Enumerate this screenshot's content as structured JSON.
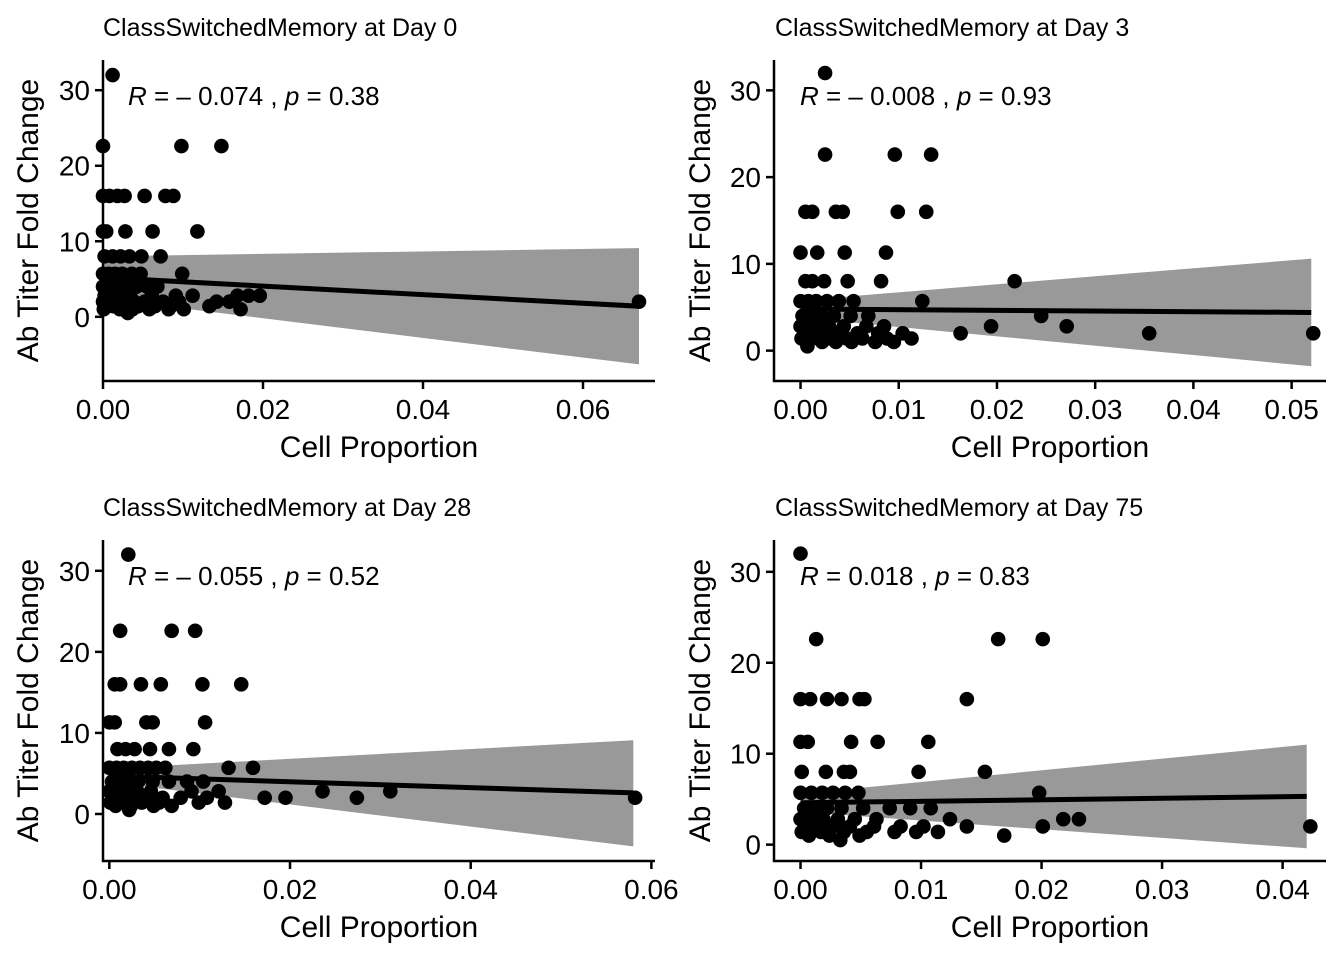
{
  "chart_data": [
    {
      "type": "scatter",
      "title": "ClassSwitchedMemory at Day 0",
      "xlabel": "Cell Proportion",
      "ylabel": "Ab Titer Fold Change",
      "stat": {
        "r_label": "R",
        "r_value": "= – 0.074",
        "sep": ",",
        "p_label": "p",
        "p_value": "= 0.38"
      },
      "xlim": [
        0,
        0.069
      ],
      "ylim": [
        -8.5,
        34
      ],
      "xticks": [
        0,
        0.02,
        0.04,
        0.06
      ],
      "xtick_labels": [
        "0.00",
        "0.02",
        "0.04",
        "0.06"
      ],
      "yticks": [
        0,
        10,
        20,
        30
      ],
      "ytick_labels": [
        "0",
        "10",
        "20",
        "30"
      ],
      "fit": {
        "x": [
          0,
          0.067
        ],
        "y": [
          5.2,
          1.4
        ],
        "ci_low": [
          2.4,
          -6.3
        ],
        "ci_high": [
          8.0,
          9.1
        ]
      },
      "points": [
        [
          0.0012,
          32
        ],
        [
          0,
          22.6
        ],
        [
          0.0098,
          22.6
        ],
        [
          0.0148,
          22.6
        ],
        [
          0,
          16
        ],
        [
          0.0008,
          16
        ],
        [
          0.0018,
          16
        ],
        [
          0.0027,
          16
        ],
        [
          0.0052,
          16
        ],
        [
          0.0078,
          16
        ],
        [
          0.0088,
          16
        ],
        [
          0,
          11.3
        ],
        [
          0.0004,
          11.3
        ],
        [
          0.0028,
          11.3
        ],
        [
          0.0062,
          11.3
        ],
        [
          0.0118,
          11.3
        ],
        [
          0.0002,
          8
        ],
        [
          0.0012,
          8
        ],
        [
          0.0022,
          8
        ],
        [
          0.0033,
          8
        ],
        [
          0.0048,
          8
        ],
        [
          0.0072,
          8
        ],
        [
          0,
          5.7
        ],
        [
          0.0007,
          5.7
        ],
        [
          0.0015,
          5.7
        ],
        [
          0.0024,
          5.7
        ],
        [
          0.0036,
          5.7
        ],
        [
          0.0047,
          5.7
        ],
        [
          0.0099,
          5.7
        ],
        [
          0,
          4
        ],
        [
          0.0009,
          4
        ],
        [
          0.0019,
          4
        ],
        [
          0.0029,
          4
        ],
        [
          0.0042,
          4
        ],
        [
          0.0055,
          4
        ],
        [
          0.0068,
          4
        ],
        [
          0.0002,
          2.8
        ],
        [
          0.0011,
          2.8
        ],
        [
          0.0023,
          2.8
        ],
        [
          0.0034,
          2.8
        ],
        [
          0.0061,
          2.8
        ],
        [
          0.0091,
          2.8
        ],
        [
          0.0112,
          2.8
        ],
        [
          0.0168,
          2.8
        ],
        [
          0.0182,
          2.8
        ],
        [
          0.0196,
          2.8
        ],
        [
          0,
          2
        ],
        [
          0.0008,
          2
        ],
        [
          0.0016,
          2
        ],
        [
          0.0028,
          2
        ],
        [
          0.0039,
          2
        ],
        [
          0.0052,
          2
        ],
        [
          0.0075,
          2
        ],
        [
          0.0095,
          2
        ],
        [
          0.0142,
          2
        ],
        [
          0.0158,
          2
        ],
        [
          0.0003,
          1.4
        ],
        [
          0.0013,
          1.4
        ],
        [
          0.0027,
          1.4
        ],
        [
          0.0044,
          1.4
        ],
        [
          0.0065,
          1.4
        ],
        [
          0.0085,
          1.4
        ],
        [
          0.0133,
          1.4
        ],
        [
          0.0001,
          1
        ],
        [
          0.0021,
          1
        ],
        [
          0.0037,
          1
        ],
        [
          0.0058,
          1
        ],
        [
          0.0082,
          1
        ],
        [
          0.0101,
          1
        ],
        [
          0.0172,
          1
        ],
        [
          0.0031,
          0.5
        ],
        [
          0.067,
          2
        ]
      ]
    },
    {
      "type": "scatter",
      "title": "ClassSwitchedMemory at Day 3",
      "xlabel": "Cell Proportion",
      "ylabel": "Ab Titer Fold Change",
      "stat": {
        "r_label": "R",
        "r_value": "= – 0.008",
        "sep": ",",
        "p_label": "p",
        "p_value": "= 0.93"
      },
      "xlim": [
        -0.0027,
        0.0535
      ],
      "ylim": [
        -3.5,
        33.5
      ],
      "xticks": [
        0,
        0.01,
        0.02,
        0.03,
        0.04,
        0.05
      ],
      "xtick_labels": [
        "0.00",
        "0.01",
        "0.02",
        "0.03",
        "0.04",
        "0.05"
      ],
      "yticks": [
        0,
        10,
        20
      ],
      "ytick_labels": [
        "0",
        "10",
        "20"
      ],
      "extra_ytick": {
        "value": 30,
        "label": "30"
      },
      "fit": {
        "x": [
          0,
          0.052
        ],
        "y": [
          4.8,
          4.4
        ],
        "ci_low": [
          3.8,
          -1.8
        ],
        "ci_high": [
          5.8,
          10.6
        ]
      },
      "points": [
        [
          0.0025,
          32
        ],
        [
          0.0025,
          22.6
        ],
        [
          0.0096,
          22.6
        ],
        [
          0.0133,
          22.6
        ],
        [
          0.0005,
          16
        ],
        [
          0.0012,
          16
        ],
        [
          0.0036,
          16
        ],
        [
          0.0043,
          16
        ],
        [
          0.0099,
          16
        ],
        [
          0.0128,
          16
        ],
        [
          0,
          11.3
        ],
        [
          0.0017,
          11.3
        ],
        [
          0.0045,
          11.3
        ],
        [
          0.0087,
          11.3
        ],
        [
          0.0005,
          8
        ],
        [
          0.0012,
          8
        ],
        [
          0.0024,
          8
        ],
        [
          0.0048,
          8
        ],
        [
          0.0082,
          8
        ],
        [
          0.0218,
          8
        ],
        [
          0,
          5.7
        ],
        [
          0.0008,
          5.7
        ],
        [
          0.0016,
          5.7
        ],
        [
          0.0027,
          5.7
        ],
        [
          0.0039,
          5.7
        ],
        [
          0.0054,
          5.7
        ],
        [
          0.0124,
          5.7
        ],
        [
          0.0002,
          4
        ],
        [
          0.0011,
          4
        ],
        [
          0.0021,
          4
        ],
        [
          0.0034,
          4
        ],
        [
          0.0051,
          4
        ],
        [
          0.0069,
          4
        ],
        [
          0.0245,
          4
        ],
        [
          0,
          2.8
        ],
        [
          0.0009,
          2.8
        ],
        [
          0.0019,
          2.8
        ],
        [
          0.0029,
          2.8
        ],
        [
          0.0044,
          2.8
        ],
        [
          0.0067,
          2.8
        ],
        [
          0.0085,
          2.8
        ],
        [
          0.0194,
          2.8
        ],
        [
          0.0271,
          2.8
        ],
        [
          0.0004,
          2
        ],
        [
          0.0014,
          2
        ],
        [
          0.0026,
          2
        ],
        [
          0.0038,
          2
        ],
        [
          0.0058,
          2
        ],
        [
          0.0079,
          2
        ],
        [
          0.0104,
          2
        ],
        [
          0.0163,
          2
        ],
        [
          0.0355,
          2
        ],
        [
          0.0522,
          2
        ],
        [
          0.0001,
          1.4
        ],
        [
          0.0018,
          1.4
        ],
        [
          0.0031,
          1.4
        ],
        [
          0.0047,
          1.4
        ],
        [
          0.0063,
          1.4
        ],
        [
          0.0088,
          1.4
        ],
        [
          0.0113,
          1.4
        ],
        [
          0.0006,
          1
        ],
        [
          0.0022,
          1
        ],
        [
          0.0036,
          1
        ],
        [
          0.0052,
          1
        ],
        [
          0.0076,
          1
        ],
        [
          0.0095,
          1
        ],
        [
          0.0007,
          0.5
        ]
      ]
    },
    {
      "type": "scatter",
      "title": "ClassSwitchedMemory at Day 28",
      "xlabel": "Cell Proportion",
      "ylabel": "Ab Titer Fold Change",
      "stat": {
        "r_label": "R",
        "r_value": "= – 0.055",
        "sep": ",",
        "p_label": "p",
        "p_value": "= 0.52"
      },
      "xlim": [
        -0.0007,
        0.0604
      ],
      "ylim": [
        -5.8,
        33.8
      ],
      "xticks": [
        0,
        0.02,
        0.04,
        0.06
      ],
      "xtick_labels": [
        "0.00",
        "0.02",
        "0.04",
        "0.06"
      ],
      "yticks": [
        0,
        10,
        20,
        30
      ],
      "ytick_labels": [
        "0",
        "10",
        "20",
        "30"
      ],
      "fit": {
        "x": [
          0,
          0.058
        ],
        "y": [
          4.7,
          2.6
        ],
        "ci_low": [
          3.9,
          -4.0
        ],
        "ci_high": [
          5.6,
          9.1
        ]
      },
      "points": [
        [
          0.0021,
          32
        ],
        [
          0.0012,
          22.6
        ],
        [
          0.0069,
          22.6
        ],
        [
          0.0095,
          22.6
        ],
        [
          0.0006,
          16
        ],
        [
          0.0012,
          16
        ],
        [
          0.0035,
          16
        ],
        [
          0.0057,
          16
        ],
        [
          0.0103,
          16
        ],
        [
          0.0146,
          16
        ],
        [
          0,
          11.3
        ],
        [
          0.0006,
          11.3
        ],
        [
          0.0041,
          11.3
        ],
        [
          0.0048,
          11.3
        ],
        [
          0.0106,
          11.3
        ],
        [
          0.0009,
          8
        ],
        [
          0.0018,
          8
        ],
        [
          0.0028,
          8
        ],
        [
          0.0045,
          8
        ],
        [
          0.0066,
          8
        ],
        [
          0.0093,
          8
        ],
        [
          0,
          5.7
        ],
        [
          0.0008,
          5.7
        ],
        [
          0.0016,
          5.7
        ],
        [
          0.0025,
          5.7
        ],
        [
          0.0034,
          5.7
        ],
        [
          0.0043,
          5.7
        ],
        [
          0.0052,
          5.7
        ],
        [
          0.0062,
          5.7
        ],
        [
          0.0132,
          5.7
        ],
        [
          0.0159,
          5.7
        ],
        [
          0.0003,
          4
        ],
        [
          0.0012,
          4
        ],
        [
          0.0022,
          4
        ],
        [
          0.0032,
          4
        ],
        [
          0.0048,
          4
        ],
        [
          0.0066,
          4
        ],
        [
          0.0086,
          4
        ],
        [
          0.0104,
          4
        ],
        [
          0,
          2.8
        ],
        [
          0.0009,
          2.8
        ],
        [
          0.0019,
          2.8
        ],
        [
          0.0031,
          2.8
        ],
        [
          0.0046,
          2.8
        ],
        [
          0.0091,
          2.8
        ],
        [
          0.0121,
          2.8
        ],
        [
          0.0236,
          2.8
        ],
        [
          0.0311,
          2.8
        ],
        [
          0.0004,
          2
        ],
        [
          0.0015,
          2
        ],
        [
          0.0027,
          2
        ],
        [
          0.0041,
          2
        ],
        [
          0.0059,
          2
        ],
        [
          0.0079,
          2
        ],
        [
          0.0108,
          2
        ],
        [
          0.0172,
          2
        ],
        [
          0.0195,
          2
        ],
        [
          0.0274,
          2
        ],
        [
          0.0582,
          2
        ],
        [
          0.0001,
          1.4
        ],
        [
          0.0017,
          1.4
        ],
        [
          0.0036,
          1.4
        ],
        [
          0.0055,
          1.4
        ],
        [
          0.0099,
          1.4
        ],
        [
          0.0128,
          1.4
        ],
        [
          0.0007,
          1
        ],
        [
          0.0024,
          1
        ],
        [
          0.0049,
          1
        ],
        [
          0.0069,
          1
        ],
        [
          0.0022,
          0.5
        ]
      ]
    },
    {
      "type": "scatter",
      "title": "ClassSwitchedMemory at Day 75",
      "xlabel": "Cell Proportion",
      "ylabel": "Ab Titer Fold Change",
      "stat": {
        "r_label": "R",
        "r_value": "= 0.018",
        "sep": ",",
        "p_label": "p",
        "p_value": "= 0.83"
      },
      "xlim": [
        -0.0022,
        0.0436
      ],
      "ylim": [
        -1.8,
        33.5
      ],
      "xticks": [
        0,
        0.01,
        0.02,
        0.03,
        0.04
      ],
      "xtick_labels": [
        "0.00",
        "0.01",
        "0.02",
        "0.03",
        "0.04"
      ],
      "yticks": [
        0,
        10,
        20,
        30
      ],
      "ytick_labels": [
        "0",
        "10",
        "20",
        "30"
      ],
      "fit": {
        "x": [
          0,
          0.042
        ],
        "y": [
          4.6,
          5.3
        ],
        "ci_low": [
          3.6,
          -0.4
        ],
        "ci_high": [
          5.6,
          11.0
        ]
      },
      "points": [
        [
          0,
          32
        ],
        [
          0.0013,
          22.6
        ],
        [
          0.0164,
          22.6
        ],
        [
          0.0201,
          22.6
        ],
        [
          0,
          16
        ],
        [
          0.0008,
          16
        ],
        [
          0.0022,
          16
        ],
        [
          0.0034,
          16
        ],
        [
          0.0049,
          16
        ],
        [
          0.0053,
          16
        ],
        [
          0.0138,
          16
        ],
        [
          0,
          11.3
        ],
        [
          0.0006,
          11.3
        ],
        [
          0.0042,
          11.3
        ],
        [
          0.0064,
          11.3
        ],
        [
          0.0106,
          11.3
        ],
        [
          0.0001,
          8
        ],
        [
          0.0021,
          8
        ],
        [
          0.0036,
          8
        ],
        [
          0.0041,
          8
        ],
        [
          0.0098,
          8
        ],
        [
          0.0153,
          8
        ],
        [
          0,
          5.7
        ],
        [
          0.0009,
          5.7
        ],
        [
          0.0018,
          5.7
        ],
        [
          0.0027,
          5.7
        ],
        [
          0.0037,
          5.7
        ],
        [
          0.0048,
          5.7
        ],
        [
          0.0198,
          5.7
        ],
        [
          0.0003,
          4
        ],
        [
          0.0012,
          4
        ],
        [
          0.0022,
          4
        ],
        [
          0.0034,
          4
        ],
        [
          0.0052,
          4
        ],
        [
          0.0074,
          4
        ],
        [
          0.0091,
          4
        ],
        [
          0.0108,
          4
        ],
        [
          0,
          2.8
        ],
        [
          0.0009,
          2.8
        ],
        [
          0.0019,
          2.8
        ],
        [
          0.0031,
          2.8
        ],
        [
          0.0045,
          2.8
        ],
        [
          0.0063,
          2.8
        ],
        [
          0.0124,
          2.8
        ],
        [
          0.0218,
          2.8
        ],
        [
          0.0231,
          2.8
        ],
        [
          0.0004,
          2
        ],
        [
          0.0015,
          2
        ],
        [
          0.0027,
          2
        ],
        [
          0.0041,
          2
        ],
        [
          0.0061,
          2
        ],
        [
          0.0083,
          2
        ],
        [
          0.0102,
          2
        ],
        [
          0.0138,
          2
        ],
        [
          0.0201,
          2
        ],
        [
          0.0001,
          1.4
        ],
        [
          0.0017,
          1.4
        ],
        [
          0.0036,
          1.4
        ],
        [
          0.0055,
          1.4
        ],
        [
          0.0078,
          1.4
        ],
        [
          0.0096,
          1.4
        ],
        [
          0.0114,
          1.4
        ],
        [
          0.0007,
          1
        ],
        [
          0.0024,
          1
        ],
        [
          0.0049,
          1
        ],
        [
          0.0169,
          1
        ],
        [
          0.0033,
          0.5
        ],
        [
          0.0423,
          2
        ]
      ]
    }
  ]
}
